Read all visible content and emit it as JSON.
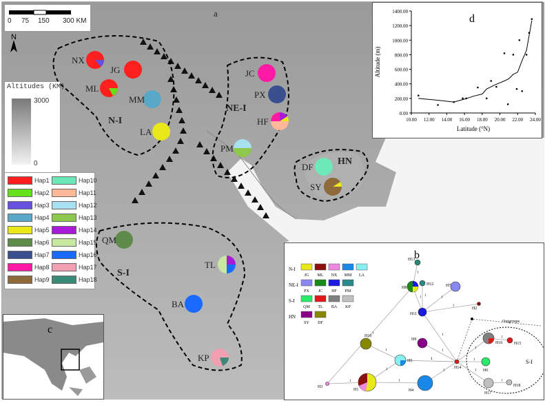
{
  "panel_a": {
    "label": "a"
  },
  "scale_bar": {
    "ticks": [
      "0",
      "75",
      "150",
      "300 KM"
    ]
  },
  "north": {
    "label": "N"
  },
  "altitude_legend": {
    "title": "Altitudes (KM)",
    "max": "3000",
    "min": "0"
  },
  "regions": {
    "n1": "N-I",
    "ne1": "NE-I",
    "hn": "HN",
    "s1": "S-I"
  },
  "sites": {
    "NX": "NX",
    "JG": "JG",
    "ML": "ML",
    "MM": "MM",
    "LA": "LA",
    "JC": "JC",
    "PX": "PX",
    "HF": "HF",
    "PM": "PM",
    "DF": "DF",
    "SY": "SY",
    "QM": "QM",
    "TL": "TL",
    "BA": "BA",
    "KP": "KP"
  },
  "haplotypes": [
    {
      "label": "Hap1",
      "color": "#ff1f1f"
    },
    {
      "label": "Hap2",
      "color": "#66e01a"
    },
    {
      "label": "Hap3",
      "color": "#6650e0"
    },
    {
      "label": "Hap4",
      "color": "#5aa8c8"
    },
    {
      "label": "Hap5",
      "color": "#e8e81a"
    },
    {
      "label": "Hap6",
      "color": "#5e8c4a"
    },
    {
      "label": "Hap7",
      "color": "#3a4f8e"
    },
    {
      "label": "Hap8",
      "color": "#ff1aa6"
    },
    {
      "label": "Hap9",
      "color": "#8e6a3a"
    },
    {
      "label": "Hap10",
      "color": "#6ee8b8"
    },
    {
      "label": "Hap11",
      "color": "#ffb898"
    },
    {
      "label": "Hap12",
      "color": "#a8e0f0"
    },
    {
      "label": "Hap13",
      "color": "#8ec84a"
    },
    {
      "label": "Hap14",
      "color": "#a81ad8"
    },
    {
      "label": "Hap15",
      "color": "#c8e8a0"
    },
    {
      "label": "Hap16",
      "color": "#1a6aff"
    },
    {
      "label": "Hap17",
      "color": "#f0a0b0"
    },
    {
      "label": "Hap18",
      "color": "#3a8a78"
    }
  ],
  "panel_c": {
    "label": "c"
  },
  "panel_d": {
    "label": "d"
  },
  "chart_data": {
    "type": "scatter",
    "xlabel": "Latitude (°N)",
    "ylabel": "Altitude (m)",
    "xlim": [
      10,
      24
    ],
    "ylim": [
      0,
      1400
    ],
    "x_ticks": [
      "10.00",
      "12.00",
      "14.00",
      "16.00",
      "18.00",
      "20.00",
      "22.00",
      "24.00"
    ],
    "y_ticks": [
      "0.00",
      "200.00",
      "400.00",
      "600.00",
      "800.00",
      "1000.00",
      "1200.00",
      "1400.00"
    ],
    "points": [
      [
        10.8,
        240
      ],
      [
        13.0,
        110
      ],
      [
        14.8,
        150
      ],
      [
        15.8,
        200
      ],
      [
        16.2,
        200
      ],
      [
        17.5,
        350
      ],
      [
        18.5,
        200
      ],
      [
        19.0,
        440
      ],
      [
        19.6,
        360
      ],
      [
        20.5,
        820
      ],
      [
        20.9,
        120
      ],
      [
        21.5,
        800
      ],
      [
        21.9,
        330
      ],
      [
        22.2,
        1000
      ],
      [
        22.5,
        300
      ],
      [
        23.0,
        800
      ],
      [
        23.3,
        1100
      ],
      [
        23.6,
        1290
      ]
    ],
    "trend": [
      [
        10.8,
        200
      ],
      [
        13.0,
        175
      ],
      [
        14.8,
        150
      ],
      [
        16.0,
        190
      ],
      [
        17.0,
        230
      ],
      [
        18.0,
        260
      ],
      [
        18.5,
        330
      ],
      [
        19.5,
        390
      ],
      [
        20.5,
        440
      ],
      [
        21.0,
        470
      ],
      [
        21.5,
        530
      ],
      [
        22.0,
        560
      ],
      [
        22.5,
        720
      ],
      [
        23.0,
        860
      ],
      [
        23.6,
        1270
      ]
    ]
  },
  "panel_b": {
    "label": "b",
    "legend_groups": [
      {
        "name": "N-I",
        "items": [
          [
            "JG",
            "#e8e81a"
          ],
          [
            "ML",
            "#8b1010"
          ],
          [
            "NX",
            "#ee88e0"
          ],
          [
            "MM",
            "#1a88e8"
          ],
          [
            "LA",
            "#88f0f0"
          ]
        ]
      },
      {
        "name": "NE-I",
        "items": [
          [
            "PX",
            "#8888ee"
          ],
          [
            "JC",
            "#1a8a1a"
          ],
          [
            "HF",
            "#1a1ae0"
          ],
          [
            "PM",
            "#2a8a8a"
          ]
        ]
      },
      {
        "name": "S-I",
        "items": [
          [
            "QM",
            "#2aea6a"
          ],
          [
            "TL",
            "#e01a1a"
          ],
          [
            "BA",
            "#808080"
          ],
          [
            "KP",
            "#c0c0c0"
          ]
        ]
      },
      {
        "name": "HN",
        "items": [
          [
            "SY",
            "#880088"
          ],
          [
            "DF",
            "#888800"
          ]
        ]
      }
    ],
    "nodes": {
      "H1": "H1",
      "H2": "H2",
      "H3": "H3",
      "H4": "H4",
      "H5": "H5",
      "H6": "H6",
      "H7": "H7",
      "H8": "H8",
      "H9": "H9",
      "H10": "H10",
      "H11": "H11",
      "H12": "H12",
      "H13": "H13",
      "H14": "H14",
      "H15": "H15",
      "H16": "H16",
      "H17": "H17",
      "H18": "H18"
    },
    "outgroups": "Outgroups",
    "s1_label": "S-I",
    "edge_labels": [
      "1",
      "2"
    ]
  }
}
